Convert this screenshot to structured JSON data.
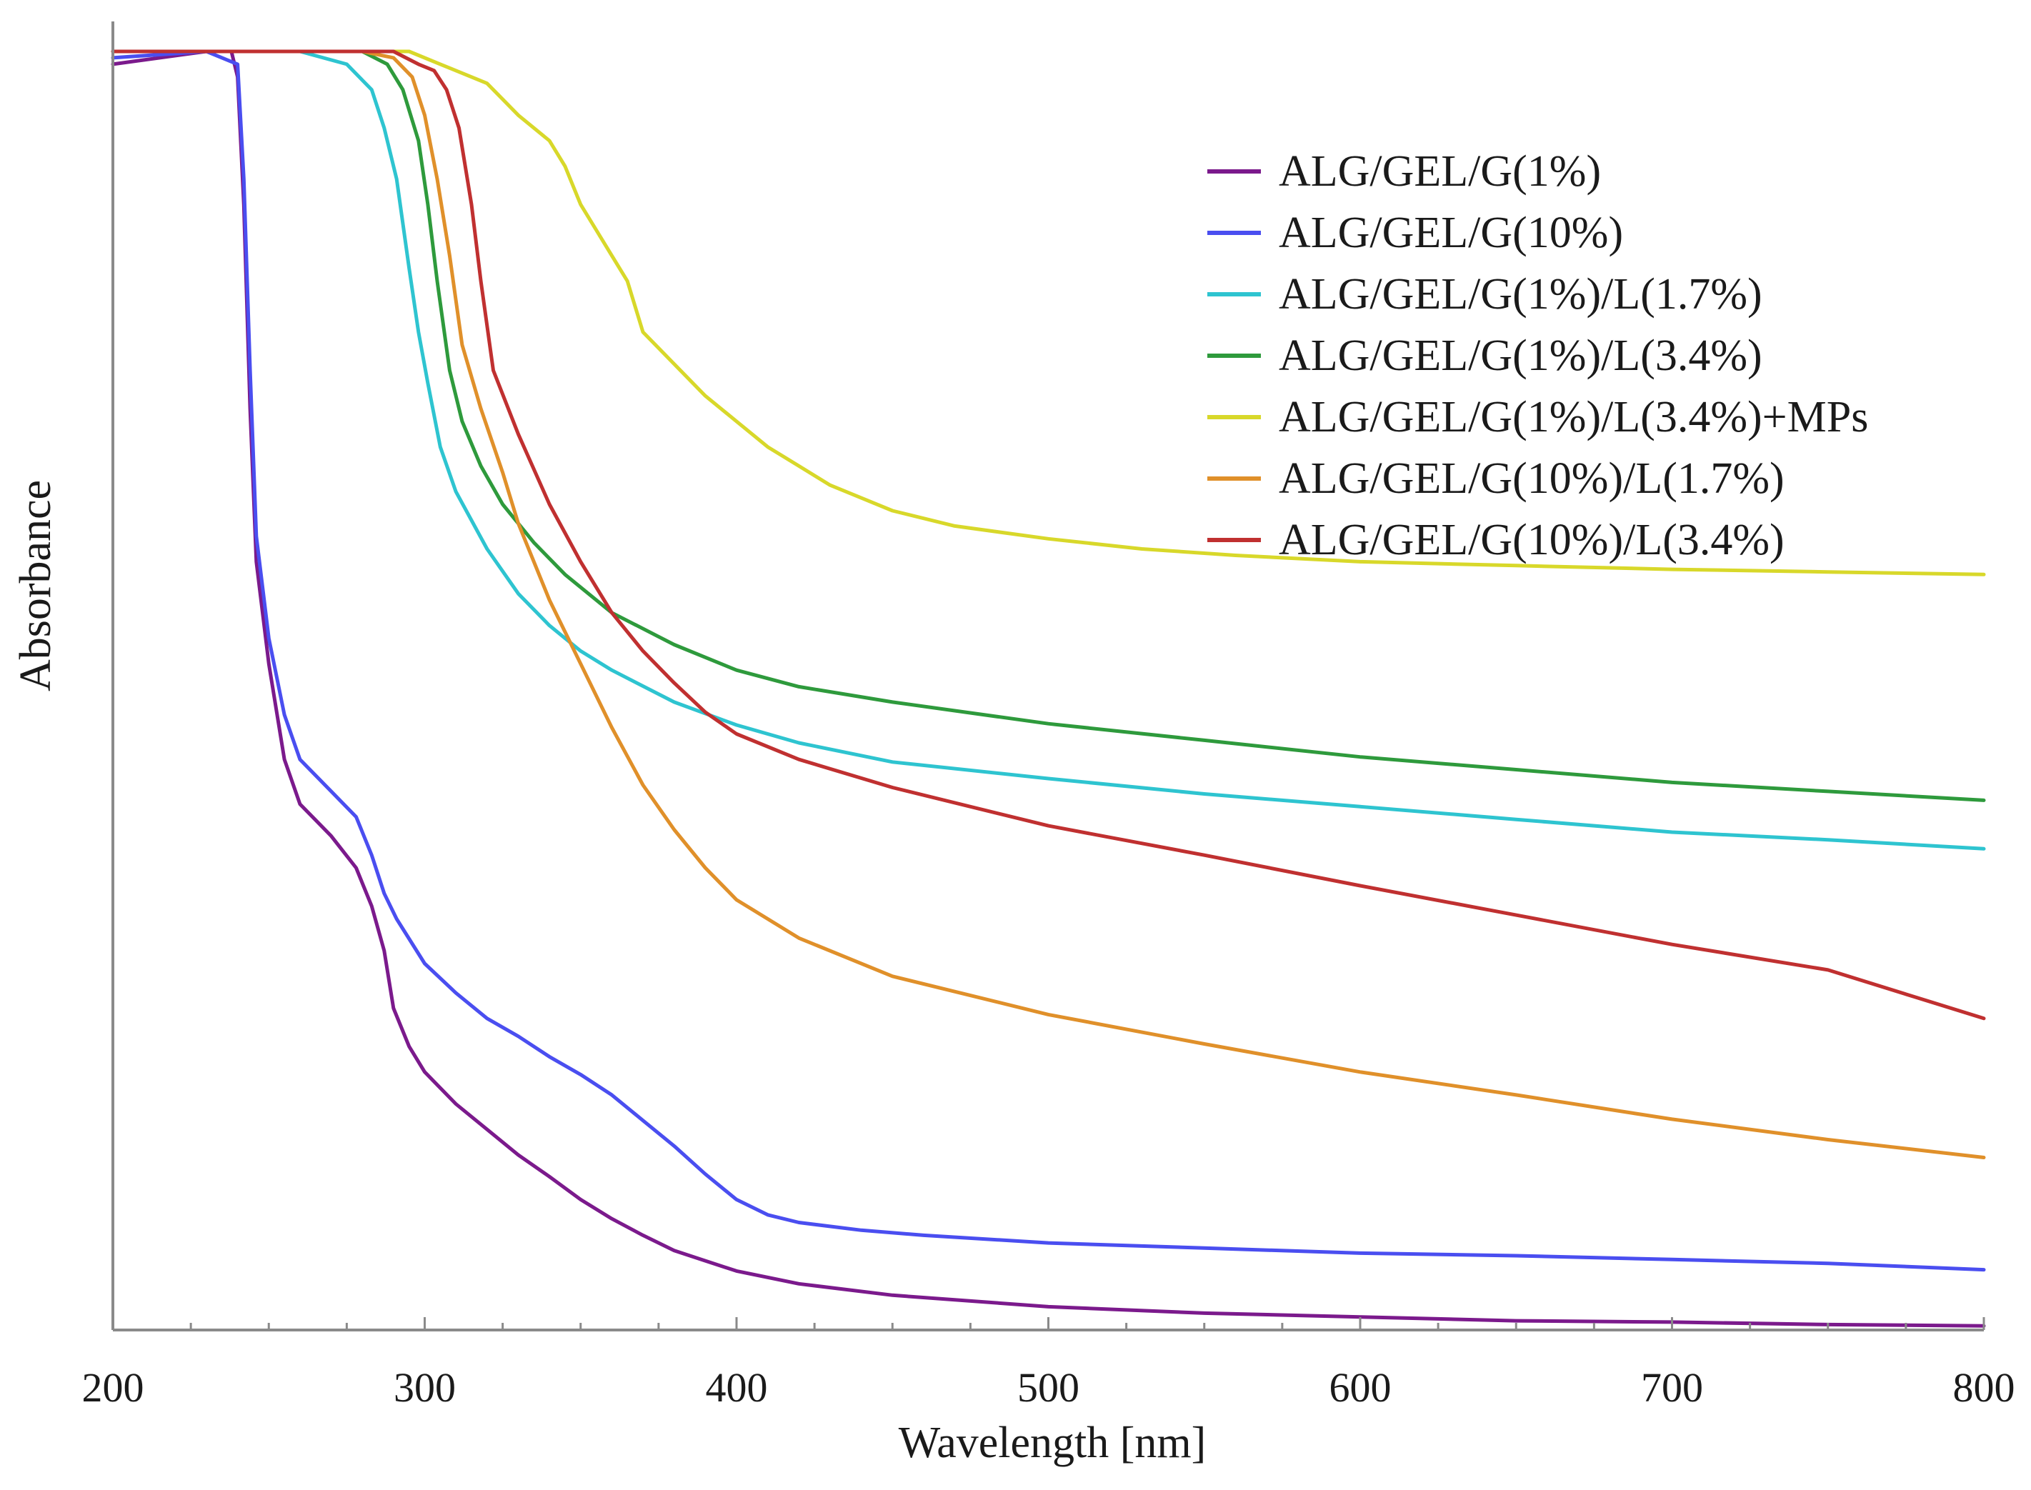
{
  "chart_data": {
    "type": "line",
    "xlabel": "Wavelength [nm]",
    "ylabel": "Absorbance",
    "xlim": [
      200,
      800
    ],
    "ylim": [
      0,
      1
    ],
    "x_ticks": [
      "200",
      "300",
      "400",
      "500",
      "600",
      "700",
      "800"
    ],
    "y_ticks": [],
    "grid": false,
    "legend_position": "top-right",
    "series": [
      {
        "name": "ALG/GEL/G(1%)",
        "color": "#7b1a8c",
        "points": [
          [
            200,
            0.99
          ],
          [
            230,
            1.0
          ],
          [
            238,
            1.0
          ],
          [
            240,
            0.98
          ],
          [
            242,
            0.88
          ],
          [
            244,
            0.72
          ],
          [
            246,
            0.6
          ],
          [
            250,
            0.52
          ],
          [
            255,
            0.445
          ],
          [
            260,
            0.41
          ],
          [
            270,
            0.385
          ],
          [
            278,
            0.36
          ],
          [
            283,
            0.33
          ],
          [
            287,
            0.295
          ],
          [
            290,
            0.25
          ],
          [
            295,
            0.22
          ],
          [
            300,
            0.2
          ],
          [
            310,
            0.175
          ],
          [
            320,
            0.155
          ],
          [
            330,
            0.135
          ],
          [
            340,
            0.118
          ],
          [
            350,
            0.1
          ],
          [
            360,
            0.085
          ],
          [
            370,
            0.072
          ],
          [
            380,
            0.06
          ],
          [
            390,
            0.052
          ],
          [
            400,
            0.044
          ],
          [
            420,
            0.034
          ],
          [
            450,
            0.025
          ],
          [
            500,
            0.016
          ],
          [
            550,
            0.011
          ],
          [
            600,
            0.008
          ],
          [
            650,
            0.005
          ],
          [
            700,
            0.004
          ],
          [
            750,
            0.002
          ],
          [
            800,
            0.001
          ]
        ]
      },
      {
        "name": "ALG/GEL/G(10%)",
        "color": "#4a4ef0",
        "points": [
          [
            200,
            0.995
          ],
          [
            230,
            1.0
          ],
          [
            240,
            0.99
          ],
          [
            242,
            0.9
          ],
          [
            244,
            0.75
          ],
          [
            246,
            0.62
          ],
          [
            250,
            0.54
          ],
          [
            255,
            0.48
          ],
          [
            260,
            0.445
          ],
          [
            270,
            0.42
          ],
          [
            278,
            0.4
          ],
          [
            283,
            0.37
          ],
          [
            287,
            0.34
          ],
          [
            291,
            0.32
          ],
          [
            300,
            0.285
          ],
          [
            310,
            0.262
          ],
          [
            320,
            0.242
          ],
          [
            330,
            0.228
          ],
          [
            340,
            0.212
          ],
          [
            350,
            0.198
          ],
          [
            360,
            0.182
          ],
          [
            370,
            0.162
          ],
          [
            380,
            0.142
          ],
          [
            390,
            0.12
          ],
          [
            400,
            0.1
          ],
          [
            410,
            0.088
          ],
          [
            420,
            0.082
          ],
          [
            440,
            0.076
          ],
          [
            460,
            0.072
          ],
          [
            500,
            0.066
          ],
          [
            550,
            0.062
          ],
          [
            600,
            0.058
          ],
          [
            650,
            0.056
          ],
          [
            700,
            0.053
          ],
          [
            750,
            0.05
          ],
          [
            800,
            0.045
          ]
        ]
      },
      {
        "name": "ALG/GEL/G(1%)/L(1.7%)",
        "color": "#2ec4d0",
        "points": [
          [
            200,
            1.0
          ],
          [
            260,
            1.0
          ],
          [
            275,
            0.99
          ],
          [
            283,
            0.97
          ],
          [
            287,
            0.94
          ],
          [
            291,
            0.9
          ],
          [
            295,
            0.83
          ],
          [
            298,
            0.78
          ],
          [
            301,
            0.74
          ],
          [
            305,
            0.69
          ],
          [
            310,
            0.655
          ],
          [
            320,
            0.61
          ],
          [
            330,
            0.575
          ],
          [
            340,
            0.55
          ],
          [
            350,
            0.53
          ],
          [
            360,
            0.515
          ],
          [
            380,
            0.49
          ],
          [
            400,
            0.472
          ],
          [
            420,
            0.458
          ],
          [
            450,
            0.443
          ],
          [
            500,
            0.43
          ],
          [
            550,
            0.418
          ],
          [
            600,
            0.408
          ],
          [
            650,
            0.398
          ],
          [
            700,
            0.388
          ],
          [
            750,
            0.382
          ],
          [
            800,
            0.375
          ]
        ]
      },
      {
        "name": "ALG/GEL/G(1%)/L(3.4%)",
        "color": "#2e9a3c",
        "points": [
          [
            200,
            1.0
          ],
          [
            280,
            1.0
          ],
          [
            288,
            0.99
          ],
          [
            293,
            0.97
          ],
          [
            298,
            0.93
          ],
          [
            301,
            0.88
          ],
          [
            304,
            0.82
          ],
          [
            308,
            0.75
          ],
          [
            312,
            0.71
          ],
          [
            318,
            0.675
          ],
          [
            325,
            0.645
          ],
          [
            335,
            0.615
          ],
          [
            345,
            0.59
          ],
          [
            360,
            0.56
          ],
          [
            380,
            0.535
          ],
          [
            400,
            0.515
          ],
          [
            420,
            0.502
          ],
          [
            450,
            0.49
          ],
          [
            500,
            0.473
          ],
          [
            550,
            0.46
          ],
          [
            600,
            0.447
          ],
          [
            650,
            0.437
          ],
          [
            700,
            0.427
          ],
          [
            750,
            0.42
          ],
          [
            800,
            0.413
          ]
        ]
      },
      {
        "name": "ALG/GEL/G(1%)/L(3.4%)+MPs",
        "color": "#d8d82a",
        "points": [
          [
            200,
            1.0
          ],
          [
            295,
            1.0
          ],
          [
            305,
            0.99
          ],
          [
            310,
            0.985
          ],
          [
            320,
            0.975
          ],
          [
            330,
            0.95
          ],
          [
            340,
            0.93
          ],
          [
            345,
            0.91
          ],
          [
            350,
            0.88
          ],
          [
            355,
            0.86
          ],
          [
            360,
            0.84
          ],
          [
            365,
            0.82
          ],
          [
            370,
            0.78
          ],
          [
            380,
            0.755
          ],
          [
            390,
            0.73
          ],
          [
            400,
            0.71
          ],
          [
            410,
            0.69
          ],
          [
            420,
            0.675
          ],
          [
            430,
            0.66
          ],
          [
            440,
            0.65
          ],
          [
            450,
            0.64
          ],
          [
            470,
            0.628
          ],
          [
            500,
            0.618
          ],
          [
            530,
            0.61
          ],
          [
            560,
            0.605
          ],
          [
            600,
            0.6
          ],
          [
            650,
            0.597
          ],
          [
            700,
            0.594
          ],
          [
            750,
            0.592
          ],
          [
            800,
            0.59
          ]
        ]
      },
      {
        "name": "ALG/GEL/G(10%)/L(1.7%)",
        "color": "#e0902a",
        "points": [
          [
            200,
            1.0
          ],
          [
            280,
            1.0
          ],
          [
            290,
            0.995
          ],
          [
            296,
            0.98
          ],
          [
            300,
            0.95
          ],
          [
            304,
            0.9
          ],
          [
            308,
            0.84
          ],
          [
            312,
            0.77
          ],
          [
            318,
            0.72
          ],
          [
            325,
            0.67
          ],
          [
            330,
            0.63
          ],
          [
            340,
            0.57
          ],
          [
            350,
            0.52
          ],
          [
            360,
            0.47
          ],
          [
            370,
            0.425
          ],
          [
            380,
            0.39
          ],
          [
            390,
            0.36
          ],
          [
            400,
            0.335
          ],
          [
            420,
            0.305
          ],
          [
            450,
            0.275
          ],
          [
            500,
            0.245
          ],
          [
            550,
            0.222
          ],
          [
            600,
            0.2
          ],
          [
            650,
            0.182
          ],
          [
            700,
            0.163
          ],
          [
            750,
            0.147
          ],
          [
            800,
            0.133
          ]
        ]
      },
      {
        "name": "ALG/GEL/G(10%)/L(3.4%)",
        "color": "#c03030",
        "points": [
          [
            200,
            1.0
          ],
          [
            290,
            1.0
          ],
          [
            298,
            0.99
          ],
          [
            303,
            0.985
          ],
          [
            307,
            0.97
          ],
          [
            311,
            0.94
          ],
          [
            315,
            0.88
          ],
          [
            318,
            0.82
          ],
          [
            322,
            0.75
          ],
          [
            330,
            0.7
          ],
          [
            340,
            0.645
          ],
          [
            350,
            0.6
          ],
          [
            360,
            0.56
          ],
          [
            370,
            0.53
          ],
          [
            380,
            0.505
          ],
          [
            390,
            0.482
          ],
          [
            400,
            0.465
          ],
          [
            420,
            0.445
          ],
          [
            450,
            0.423
          ],
          [
            500,
            0.393
          ],
          [
            550,
            0.37
          ],
          [
            600,
            0.346
          ],
          [
            650,
            0.323
          ],
          [
            700,
            0.3
          ],
          [
            750,
            0.28
          ],
          [
            800,
            0.242
          ]
        ]
      }
    ]
  }
}
